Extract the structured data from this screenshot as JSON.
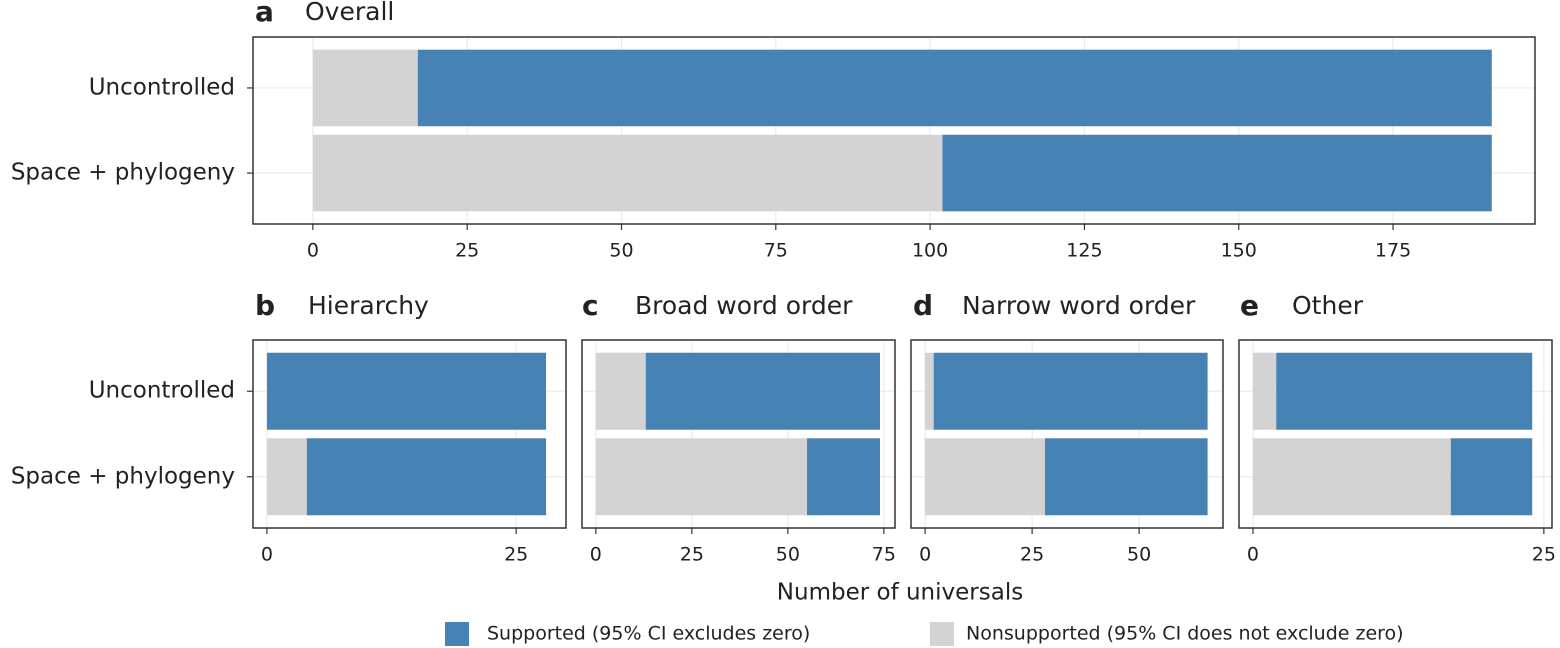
{
  "chart_data": [
    {
      "type": "bar",
      "panel": "a",
      "title": "Overall",
      "categories": [
        "Uncontrolled",
        "Space + phylogeny"
      ],
      "series": [
        {
          "name": "Nonsupported (95% CI does not exclude zero)",
          "color": "#d3d3d3",
          "values": [
            17,
            102
          ]
        },
        {
          "name": "Supported (95% CI excludes zero)",
          "color": "#4682b4",
          "values": [
            174,
            89
          ]
        }
      ],
      "xlim": [
        -9.7,
        198
      ],
      "xticks": [
        0,
        25,
        50,
        75,
        100,
        125,
        150,
        175
      ],
      "grid": true
    },
    {
      "type": "bar",
      "panel": "b",
      "title": "Hierarchy",
      "categories": [
        "Uncontrolled",
        "Space + phylogeny"
      ],
      "series": [
        {
          "values": [
            0,
            4
          ]
        },
        {
          "values": [
            28,
            24
          ]
        }
      ],
      "xlim": [
        -1.4,
        30
      ],
      "xticks": [
        0,
        25
      ],
      "grid": true
    },
    {
      "type": "bar",
      "panel": "c",
      "title": "Broad word order",
      "series": [
        {
          "values": [
            13,
            55
          ]
        },
        {
          "values": [
            61,
            19
          ]
        }
      ],
      "xlim": [
        -3.6,
        77.9
      ],
      "xticks": [
        0,
        25,
        50,
        75
      ],
      "grid": true
    },
    {
      "type": "bar",
      "panel": "d",
      "title": "Narrow word order",
      "series": [
        {
          "values": [
            2,
            28
          ]
        },
        {
          "values": [
            64,
            38
          ]
        }
      ],
      "xlim": [
        -3.3,
        69.6
      ],
      "xticks": [
        0,
        25,
        50
      ],
      "grid": true
    },
    {
      "type": "bar",
      "panel": "e",
      "title": "Other",
      "series": [
        {
          "values": [
            2,
            17
          ]
        },
        {
          "values": [
            22,
            7
          ]
        }
      ],
      "xlim": [
        -1.2,
        25.7
      ],
      "xticks": [
        0,
        25
      ],
      "grid": true
    }
  ],
  "xlabel": "Number of universals"
}
